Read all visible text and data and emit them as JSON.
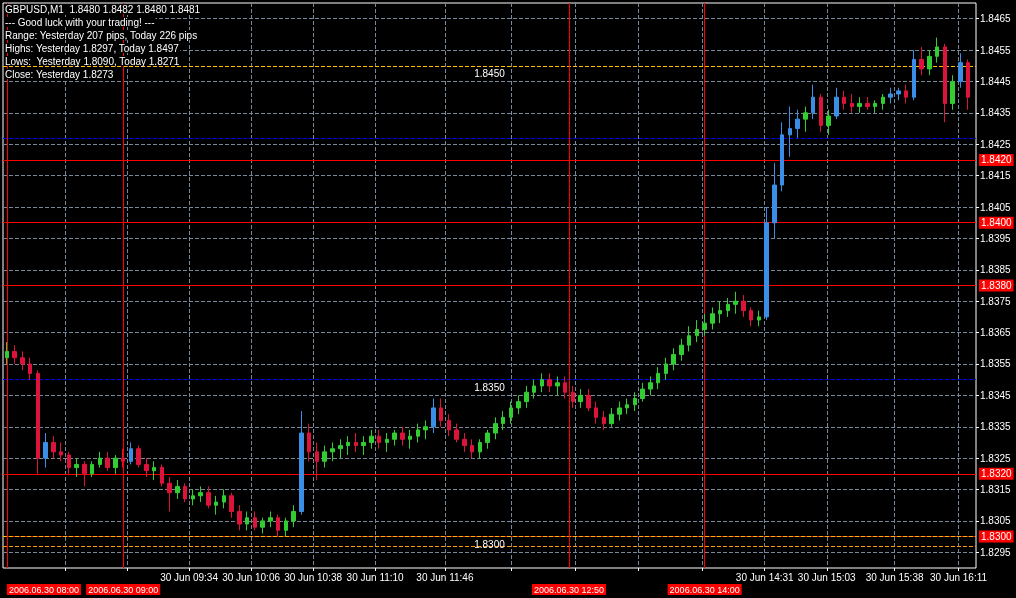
{
  "chart_data": {
    "type": "candlestick",
    "title": "GBPUSD,M1  1.8480 1.8482 1.8480 1.8481",
    "annotations": [
      "--- Good luck with your trading! ---",
      "Range: Yesterday 207 pips, Today 226 pips",
      "Highs: Yesterday 1.8297, Today 1.8497",
      "Lows:  Yesterday 1.8090, Today 1.8271",
      "Close: Yesterday 1.8273"
    ],
    "x": [
      "2006-06-30T08:00",
      "2006-06-30T08:04",
      "2006-06-30T08:08",
      "2006-06-30T08:12",
      "2006-06-30T08:16",
      "2006-06-30T08:20",
      "2006-06-30T08:24",
      "2006-06-30T08:28",
      "2006-06-30T08:32",
      "2006-06-30T08:36",
      "2006-06-30T08:40",
      "2006-06-30T08:44",
      "2006-06-30T08:48",
      "2006-06-30T08:52",
      "2006-06-30T08:56",
      "2006-06-30T09:00",
      "2006-06-30T09:04",
      "2006-06-30T09:08",
      "2006-06-30T09:12",
      "2006-06-30T09:16",
      "2006-06-30T09:20",
      "2006-06-30T09:24",
      "2006-06-30T09:28",
      "2006-06-30T09:32",
      "2006-06-30T09:36",
      "2006-06-30T09:40",
      "2006-06-30T09:44",
      "2006-06-30T09:48",
      "2006-06-30T09:52",
      "2006-06-30T09:56",
      "2006-06-30T10:00",
      "2006-06-30T10:04",
      "2006-06-30T10:08",
      "2006-06-30T10:12",
      "2006-06-30T10:16",
      "2006-06-30T10:20",
      "2006-06-30T10:24",
      "2006-06-30T10:28",
      "2006-06-30T10:32",
      "2006-06-30T10:36",
      "2006-06-30T10:40",
      "2006-06-30T10:44",
      "2006-06-30T10:48",
      "2006-06-30T10:52",
      "2006-06-30T10:56",
      "2006-06-30T11:00",
      "2006-06-30T11:04",
      "2006-06-30T11:08",
      "2006-06-30T11:12",
      "2006-06-30T11:16",
      "2006-06-30T11:20",
      "2006-06-30T11:24",
      "2006-06-30T11:28",
      "2006-06-30T11:32",
      "2006-06-30T11:36",
      "2006-06-30T11:40",
      "2006-06-30T11:44",
      "2006-06-30T11:48",
      "2006-06-30T11:52",
      "2006-06-30T11:56",
      "2006-06-30T12:00",
      "2006-06-30T12:04",
      "2006-06-30T12:08",
      "2006-06-30T12:12",
      "2006-06-30T12:16",
      "2006-06-30T12:20",
      "2006-06-30T12:24",
      "2006-06-30T12:28",
      "2006-06-30T12:32",
      "2006-06-30T12:36",
      "2006-06-30T12:40",
      "2006-06-30T12:44",
      "2006-06-30T12:48",
      "2006-06-30T12:52",
      "2006-06-30T12:56",
      "2006-06-30T13:00",
      "2006-06-30T13:04",
      "2006-06-30T13:08",
      "2006-06-30T13:12",
      "2006-06-30T13:16",
      "2006-06-30T13:20",
      "2006-06-30T13:24",
      "2006-06-30T13:28",
      "2006-06-30T13:32",
      "2006-06-30T13:36",
      "2006-06-30T13:40",
      "2006-06-30T13:44",
      "2006-06-30T13:48",
      "2006-06-30T13:52",
      "2006-06-30T13:56",
      "2006-06-30T14:00",
      "2006-06-30T14:04",
      "2006-06-30T14:08",
      "2006-06-30T14:12",
      "2006-06-30T14:16",
      "2006-06-30T14:20",
      "2006-06-30T14:24",
      "2006-06-30T14:28",
      "2006-06-30T14:32",
      "2006-06-30T14:36",
      "2006-06-30T14:40",
      "2006-06-30T14:44",
      "2006-06-30T14:48",
      "2006-06-30T14:52",
      "2006-06-30T14:56",
      "2006-06-30T15:00",
      "2006-06-30T15:04",
      "2006-06-30T15:08",
      "2006-06-30T15:12",
      "2006-06-30T15:16",
      "2006-06-30T15:20",
      "2006-06-30T15:24",
      "2006-06-30T15:28",
      "2006-06-30T15:32",
      "2006-06-30T15:36",
      "2006-06-30T15:40",
      "2006-06-30T15:44",
      "2006-06-30T15:48",
      "2006-06-30T15:52",
      "2006-06-30T15:56",
      "2006-06-30T16:00",
      "2006-06-30T16:04",
      "2006-06-30T16:08",
      "2006-06-30T16:12",
      "2006-06-30T16:16"
    ],
    "ohlc": [
      [
        1.8357,
        1.8362,
        1.8355,
        1.8359
      ],
      [
        1.8359,
        1.8361,
        1.8355,
        1.8357
      ],
      [
        1.8357,
        1.8359,
        1.8353,
        1.8355
      ],
      [
        1.8355,
        1.8357,
        1.835,
        1.8352
      ],
      [
        1.8352,
        1.8353,
        1.832,
        1.8325
      ],
      [
        1.8325,
        1.8333,
        1.8322,
        1.833
      ],
      [
        1.833,
        1.8332,
        1.8325,
        1.8327
      ],
      [
        1.8327,
        1.833,
        1.8324,
        1.8326
      ],
      [
        1.8326,
        1.8327,
        1.832,
        1.8322
      ],
      [
        1.8322,
        1.8325,
        1.8319,
        1.8323
      ],
      [
        1.8323,
        1.8324,
        1.8316,
        1.832
      ],
      [
        1.832,
        1.8324,
        1.8319,
        1.8323
      ],
      [
        1.8323,
        1.8327,
        1.8322,
        1.8325
      ],
      [
        1.8325,
        1.8327,
        1.8321,
        1.8322
      ],
      [
        1.8322,
        1.8326,
        1.832,
        1.8325
      ],
      [
        1.8325,
        1.8328,
        1.8322,
        1.8324
      ],
      [
        1.8324,
        1.833,
        1.8323,
        1.8328
      ],
      [
        1.8328,
        1.8329,
        1.8322,
        1.8323
      ],
      [
        1.8323,
        1.8325,
        1.8319,
        1.8321
      ],
      [
        1.8321,
        1.8324,
        1.8318,
        1.8322
      ],
      [
        1.8322,
        1.8323,
        1.8316,
        1.8317
      ],
      [
        1.8317,
        1.8319,
        1.8308,
        1.8314
      ],
      [
        1.8314,
        1.8318,
        1.8312,
        1.8316
      ],
      [
        1.8316,
        1.8317,
        1.8311,
        1.8312
      ],
      [
        1.8312,
        1.8315,
        1.831,
        1.8313
      ],
      [
        1.8313,
        1.8316,
        1.8311,
        1.8314
      ],
      [
        1.8314,
        1.8316,
        1.8309,
        1.831
      ],
      [
        1.831,
        1.8313,
        1.8307,
        1.8311
      ],
      [
        1.8311,
        1.8315,
        1.8309,
        1.8313
      ],
      [
        1.8313,
        1.8314,
        1.8306,
        1.8308
      ],
      [
        1.8308,
        1.831,
        1.8302,
        1.8304
      ],
      [
        1.8304,
        1.8308,
        1.8302,
        1.8306
      ],
      [
        1.8306,
        1.8308,
        1.8302,
        1.8303
      ],
      [
        1.8303,
        1.8306,
        1.8301,
        1.8305
      ],
      [
        1.8305,
        1.8308,
        1.8303,
        1.8306
      ],
      [
        1.8306,
        1.8307,
        1.83,
        1.8302
      ],
      [
        1.8302,
        1.8306,
        1.83,
        1.8305
      ],
      [
        1.8305,
        1.831,
        1.8303,
        1.8308
      ],
      [
        1.8308,
        1.834,
        1.8307,
        1.8333
      ],
      [
        1.8333,
        1.8336,
        1.8324,
        1.8327
      ],
      [
        1.8327,
        1.833,
        1.8318,
        1.8324
      ],
      [
        1.8324,
        1.8329,
        1.8322,
        1.8327
      ],
      [
        1.8327,
        1.833,
        1.8324,
        1.8328
      ],
      [
        1.8328,
        1.8331,
        1.8325,
        1.8329
      ],
      [
        1.8329,
        1.8332,
        1.8326,
        1.833
      ],
      [
        1.833,
        1.8333,
        1.8327,
        1.8329
      ],
      [
        1.8329,
        1.8332,
        1.8326,
        1.833
      ],
      [
        1.833,
        1.8334,
        1.8328,
        1.8332
      ],
      [
        1.8332,
        1.8334,
        1.8328,
        1.833
      ],
      [
        1.833,
        1.8333,
        1.8327,
        1.8331
      ],
      [
        1.8331,
        1.8334,
        1.8329,
        1.8333
      ],
      [
        1.8333,
        1.8335,
        1.8329,
        1.8331
      ],
      [
        1.8331,
        1.8334,
        1.8328,
        1.8332
      ],
      [
        1.8332,
        1.8336,
        1.833,
        1.8334
      ],
      [
        1.8334,
        1.8337,
        1.8331,
        1.8335
      ],
      [
        1.8335,
        1.8344,
        1.8333,
        1.8341
      ],
      [
        1.8341,
        1.8344,
        1.8335,
        1.8337
      ],
      [
        1.8337,
        1.8339,
        1.8332,
        1.8334
      ],
      [
        1.8334,
        1.8336,
        1.833,
        1.8331
      ],
      [
        1.8331,
        1.8333,
        1.8327,
        1.8329
      ],
      [
        1.8329,
        1.8331,
        1.8325,
        1.8327
      ],
      [
        1.8327,
        1.8331,
        1.8325,
        1.833
      ],
      [
        1.833,
        1.8334,
        1.8328,
        1.8333
      ],
      [
        1.8333,
        1.8338,
        1.8331,
        1.8336
      ],
      [
        1.8336,
        1.834,
        1.8334,
        1.8338
      ],
      [
        1.8338,
        1.8343,
        1.8336,
        1.8341
      ],
      [
        1.8341,
        1.8345,
        1.8339,
        1.8343
      ],
      [
        1.8343,
        1.8348,
        1.8341,
        1.8346
      ],
      [
        1.8346,
        1.835,
        1.8344,
        1.8348
      ],
      [
        1.8348,
        1.8352,
        1.8346,
        1.835
      ],
      [
        1.835,
        1.8352,
        1.8346,
        1.8348
      ],
      [
        1.8348,
        1.8351,
        1.8345,
        1.8349
      ],
      [
        1.8349,
        1.8351,
        1.8344,
        1.8346
      ],
      [
        1.8346,
        1.8348,
        1.8341,
        1.8343
      ],
      [
        1.8343,
        1.8347,
        1.8341,
        1.8345
      ],
      [
        1.8345,
        1.8347,
        1.834,
        1.8341
      ],
      [
        1.8341,
        1.8343,
        1.8336,
        1.8338
      ],
      [
        1.8338,
        1.834,
        1.8334,
        1.8336
      ],
      [
        1.8336,
        1.8341,
        1.8335,
        1.8339
      ],
      [
        1.8339,
        1.8343,
        1.8337,
        1.8341
      ],
      [
        1.8341,
        1.8344,
        1.8339,
        1.8342
      ],
      [
        1.8342,
        1.8346,
        1.834,
        1.8344
      ],
      [
        1.8344,
        1.8349,
        1.8343,
        1.8347
      ],
      [
        1.8347,
        1.8351,
        1.8345,
        1.8349
      ],
      [
        1.8349,
        1.8354,
        1.8347,
        1.8352
      ],
      [
        1.8352,
        1.8357,
        1.835,
        1.8355
      ],
      [
        1.8355,
        1.836,
        1.8353,
        1.8358
      ],
      [
        1.8358,
        1.8363,
        1.8356,
        1.8361
      ],
      [
        1.8361,
        1.8367,
        1.8359,
        1.8364
      ],
      [
        1.8364,
        1.8369,
        1.8362,
        1.8366
      ],
      [
        1.8366,
        1.8371,
        1.8364,
        1.8368
      ],
      [
        1.8368,
        1.8373,
        1.8366,
        1.8371
      ],
      [
        1.8371,
        1.8375,
        1.8368,
        1.8372
      ],
      [
        1.8372,
        1.8376,
        1.837,
        1.8374
      ],
      [
        1.8374,
        1.8378,
        1.8371,
        1.8375
      ],
      [
        1.8375,
        1.8377,
        1.837,
        1.8372
      ],
      [
        1.8372,
        1.8373,
        1.8367,
        1.8369
      ],
      [
        1.8369,
        1.8372,
        1.8367,
        1.837
      ],
      [
        1.837,
        1.8405,
        1.8369,
        1.84
      ],
      [
        1.84,
        1.8419,
        1.8395,
        1.8412
      ],
      [
        1.8412,
        1.8432,
        1.841,
        1.8428
      ],
      [
        1.8428,
        1.8437,
        1.8421,
        1.843
      ],
      [
        1.843,
        1.8436,
        1.8427,
        1.8433
      ],
      [
        1.8433,
        1.8437,
        1.8429,
        1.8435
      ],
      [
        1.8435,
        1.8444,
        1.8433,
        1.844
      ],
      [
        1.844,
        1.8441,
        1.8429,
        1.8431
      ],
      [
        1.8431,
        1.8436,
        1.8428,
        1.8434
      ],
      [
        1.8434,
        1.8443,
        1.8433,
        1.844
      ],
      [
        1.844,
        1.8442,
        1.8436,
        1.8438
      ],
      [
        1.8438,
        1.8441,
        1.8435,
        1.8437
      ],
      [
        1.8437,
        1.844,
        1.8435,
        1.8438
      ],
      [
        1.8438,
        1.844,
        1.8436,
        1.8437
      ],
      [
        1.8437,
        1.8439,
        1.8435,
        1.8438
      ],
      [
        1.8438,
        1.8441,
        1.8436,
        1.844
      ],
      [
        1.844,
        1.8443,
        1.8438,
        1.8441
      ],
      [
        1.8441,
        1.8443,
        1.8439,
        1.8442
      ],
      [
        1.8442,
        1.8444,
        1.8438,
        1.844
      ],
      [
        1.844,
        1.8455,
        1.8439,
        1.8452
      ],
      [
        1.8452,
        1.8456,
        1.8447,
        1.8449
      ],
      [
        1.8449,
        1.8455,
        1.8447,
        1.8453
      ],
      [
        1.8453,
        1.8459,
        1.8451,
        1.8456
      ],
      [
        1.8456,
        1.8457,
        1.8432,
        1.8438
      ],
      [
        1.8438,
        1.8447,
        1.8436,
        1.8445
      ],
      [
        1.8445,
        1.8454,
        1.8443,
        1.8451
      ],
      [
        1.8451,
        1.8452,
        1.8436,
        1.844
      ]
    ],
    "colors": [
      "#32cd32",
      "#dc143c",
      "#dc143c",
      "#dc143c",
      "#dc143c",
      "#3a8ee6",
      "#dc143c",
      "#dc143c",
      "#dc143c",
      "#32cd32",
      "#dc143c",
      "#32cd32",
      "#32cd32",
      "#dc143c",
      "#32cd32",
      "#dc143c",
      "#3a8ee6",
      "#dc143c",
      "#dc143c",
      "#32cd32",
      "#dc143c",
      "#dc143c",
      "#32cd32",
      "#dc143c",
      "#32cd32",
      "#32cd32",
      "#dc143c",
      "#32cd32",
      "#32cd32",
      "#dc143c",
      "#dc143c",
      "#32cd32",
      "#dc143c",
      "#32cd32",
      "#32cd32",
      "#dc143c",
      "#32cd32",
      "#32cd32",
      "#3a8ee6",
      "#dc143c",
      "#dc143c",
      "#32cd32",
      "#32cd32",
      "#32cd32",
      "#32cd32",
      "#dc143c",
      "#32cd32",
      "#32cd32",
      "#dc143c",
      "#32cd32",
      "#32cd32",
      "#dc143c",
      "#32cd32",
      "#32cd32",
      "#32cd32",
      "#3a8ee6",
      "#dc143c",
      "#dc143c",
      "#dc143c",
      "#dc143c",
      "#dc143c",
      "#32cd32",
      "#32cd32",
      "#32cd32",
      "#32cd32",
      "#32cd32",
      "#32cd32",
      "#32cd32",
      "#32cd32",
      "#32cd32",
      "#dc143c",
      "#32cd32",
      "#dc143c",
      "#dc143c",
      "#32cd32",
      "#dc143c",
      "#dc143c",
      "#dc143c",
      "#32cd32",
      "#32cd32",
      "#32cd32",
      "#32cd32",
      "#32cd32",
      "#32cd32",
      "#32cd32",
      "#32cd32",
      "#32cd32",
      "#32cd32",
      "#32cd32",
      "#32cd32",
      "#32cd32",
      "#32cd32",
      "#32cd32",
      "#32cd32",
      "#32cd32",
      "#dc143c",
      "#dc143c",
      "#32cd32",
      "#3a8ee6",
      "#3a8ee6",
      "#3a8ee6",
      "#3a8ee6",
      "#3a8ee6",
      "#32cd32",
      "#3a8ee6",
      "#dc143c",
      "#32cd32",
      "#3a8ee6",
      "#dc143c",
      "#dc143c",
      "#32cd32",
      "#dc143c",
      "#32cd32",
      "#32cd32",
      "#3a8ee6",
      "#3a8ee6",
      "#dc143c",
      "#3a8ee6",
      "#dc143c",
      "#32cd32",
      "#32cd32",
      "#dc143c",
      "#32cd32",
      "#3a8ee6",
      "#dc143c"
    ],
    "xlim": [
      "2006-06-30T07:58",
      "2006-06-30T16:20"
    ],
    "xticks": [
      {
        "value": "2006-06-30T08:30",
        "label": null
      },
      {
        "value": "2006-06-30T09:02",
        "label": null
      },
      {
        "value": "2006-06-30T09:34",
        "label": "30 Jun 09:34"
      },
      {
        "value": "2006-06-30T10:06",
        "label": "30 Jun 10:06"
      },
      {
        "value": "2006-06-30T10:38",
        "label": "30 Jun 10:38"
      },
      {
        "value": "2006-06-30T11:10",
        "label": "30 Jun 11:10"
      },
      {
        "value": "2006-06-30T11:46",
        "label": "30 Jun 11:46"
      },
      {
        "value": "2006-06-30T12:20",
        "label": null
      },
      {
        "value": "2006-06-30T12:53",
        "label": null
      },
      {
        "value": "2006-06-30T13:26",
        "label": null
      },
      {
        "value": "2006-06-30T13:59",
        "label": null
      },
      {
        "value": "2006-06-30T14:31",
        "label": "30 Jun 14:31"
      },
      {
        "value": "2006-06-30T15:03",
        "label": "30 Jun 15:03"
      },
      {
        "value": "2006-06-30T15:38",
        "label": "30 Jun 15:38"
      },
      {
        "value": "2006-06-30T16:11",
        "label": "30 Jun 16:11"
      }
    ],
    "ylim": [
      1.829,
      1.847
    ],
    "yticks": [
      1.8295,
      1.8305,
      1.8315,
      1.8325,
      1.8335,
      1.8345,
      1.8355,
      1.8365,
      1.8375,
      1.8385,
      1.8395,
      1.8405,
      1.8415,
      1.8425,
      1.8435,
      1.8445,
      1.8455,
      1.8465
    ],
    "grid": true,
    "ref_lines": [
      {
        "axis": "y",
        "value": 1.842,
        "label": "1.8420",
        "color": "#ff0000",
        "line_style": "solid"
      },
      {
        "axis": "y",
        "value": 1.84,
        "label": "1.8400",
        "color": "#ff0000",
        "line_style": "solid"
      },
      {
        "axis": "y",
        "value": 1.838,
        "label": "1.8380",
        "color": "#ff0000",
        "line_style": "solid"
      },
      {
        "axis": "y",
        "value": 1.832,
        "label": "1.8320",
        "color": "#ff0000",
        "line_style": "solid"
      },
      {
        "axis": "y",
        "value": 1.83,
        "label": "1.8300",
        "color": "#ff0000",
        "line_style": "solid"
      },
      {
        "axis": "y",
        "value": 1.845,
        "label": "1.8450",
        "color": "#ffc000",
        "line_style": "dashed"
      },
      {
        "axis": "y",
        "value": 1.835,
        "label": "1.8350",
        "color": "#0000ff",
        "line_style": "dashed"
      },
      {
        "axis": "y",
        "value": 1.83,
        "label": "1.8300",
        "color": "#ffc000",
        "line_style": "dashed"
      },
      {
        "axis": "y",
        "value": 1.8297,
        "color": "#ff9900",
        "line_style": "dashed"
      },
      {
        "axis": "y",
        "value": 1.8427,
        "color": "#0000ff",
        "line_style": "dashed"
      },
      {
        "axis": "x",
        "value": "2006-06-30T08:00",
        "label": "2006.06.30 08:00",
        "color": "#ff0000",
        "line_style": "solid"
      },
      {
        "axis": "x",
        "value": "2006-06-30T09:00",
        "label": "2006.06.30 09:00",
        "color": "#ff0000",
        "line_style": "solid"
      },
      {
        "axis": "x",
        "value": "2006-06-30T12:50",
        "label": "2006.06.30 12:50",
        "color": "#ff0000",
        "line_style": "solid"
      },
      {
        "axis": "x",
        "value": "2006-06-30T14:00",
        "label": "2006.06.30 14:00",
        "color": "#ff0000",
        "line_style": "solid"
      }
    ]
  }
}
